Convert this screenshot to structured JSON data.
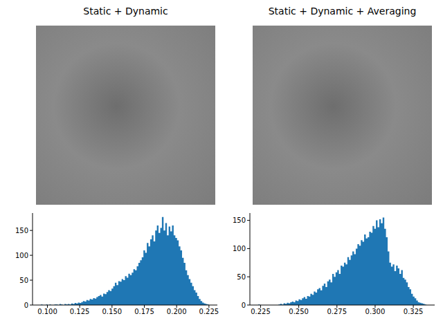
{
  "chart_data": [
    {
      "type": "image",
      "title": "Static + Dynamic"
    },
    {
      "type": "image",
      "title": "Static + Dynamic + Averaging"
    },
    {
      "type": "histogram",
      "color": "#1f77b4",
      "bins": [
        0.095,
        0.0963,
        0.0976,
        0.0989,
        0.1002,
        0.1015,
        0.1028,
        0.1041,
        0.1054,
        0.1067,
        0.108,
        0.1093,
        0.1106,
        0.1119,
        0.1132,
        0.1145,
        0.1158,
        0.1171,
        0.1184,
        0.1197,
        0.121,
        0.1223,
        0.1236,
        0.1249,
        0.1262,
        0.1275,
        0.1288,
        0.1301,
        0.1314,
        0.1327,
        0.134,
        0.1353,
        0.1366,
        0.1379,
        0.1392,
        0.1405,
        0.1418,
        0.1431,
        0.1444,
        0.1457,
        0.147,
        0.1483,
        0.1496,
        0.1509,
        0.1522,
        0.1535,
        0.1548,
        0.1561,
        0.1574,
        0.1587,
        0.16,
        0.1613,
        0.1626,
        0.1639,
        0.1652,
        0.1665,
        0.1678,
        0.1691,
        0.1704,
        0.1717,
        0.173,
        0.1743,
        0.1756,
        0.1769,
        0.1782,
        0.1795,
        0.1808,
        0.1821,
        0.1834,
        0.1847,
        0.186,
        0.1873,
        0.1886,
        0.1899,
        0.1912,
        0.1925,
        0.1938,
        0.1951,
        0.1964,
        0.1977,
        0.199,
        0.2003,
        0.2016,
        0.2029,
        0.2042,
        0.2055,
        0.2068,
        0.2081,
        0.2094,
        0.2107,
        0.212,
        0.2133,
        0.2146,
        0.2159,
        0.2172,
        0.2185,
        0.2198,
        0.2211,
        0.2224,
        0.2237,
        0.225
      ],
      "values": [
        1,
        0,
        0,
        1,
        0,
        1,
        0,
        0,
        1,
        1,
        0,
        2,
        1,
        0,
        2,
        1,
        2,
        1,
        3,
        2,
        4,
        3,
        5,
        4,
        6,
        8,
        7,
        10,
        9,
        12,
        11,
        14,
        13,
        16,
        18,
        20,
        17,
        23,
        22,
        26,
        30,
        28,
        33,
        38,
        45,
        40,
        48,
        47,
        52,
        50,
        58,
        55,
        63,
        60,
        65,
        72,
        70,
        78,
        85,
        90,
        96,
        110,
        105,
        125,
        118,
        132,
        140,
        128,
        150,
        160,
        145,
        155,
        177,
        150,
        165,
        140,
        158,
        148,
        160,
        140,
        135,
        130,
        118,
        110,
        95,
        85,
        70,
        60,
        52,
        45,
        38,
        30,
        25,
        18,
        12,
        8,
        5,
        3,
        2,
        1
      ],
      "xlim": [
        0.0885,
        0.2315
      ],
      "xticks": [
        {
          "value": 0.1,
          "label": "0.100"
        },
        0.125,
        {
          "value": 0.15,
          "label": "0.150"
        },
        0.175,
        {
          "value": 0.2,
          "label": "0.200"
        },
        0.225
      ],
      "ylim": [
        0,
        185
      ],
      "yticks": [
        0,
        50,
        100,
        150
      ]
    },
    {
      "type": "histogram",
      "color": "#1f77b4",
      "bins": [
        0.2235,
        0.2246,
        0.2257,
        0.2268,
        0.2279,
        0.229,
        0.2301,
        0.2312,
        0.2323,
        0.2334,
        0.2345,
        0.2356,
        0.2367,
        0.2378,
        0.2389,
        0.24,
        0.2411,
        0.2422,
        0.2433,
        0.2444,
        0.2455,
        0.2466,
        0.2477,
        0.2488,
        0.2499,
        0.251,
        0.2521,
        0.2532,
        0.2543,
        0.2554,
        0.2565,
        0.2576,
        0.2587,
        0.2598,
        0.2609,
        0.262,
        0.2631,
        0.2642,
        0.2653,
        0.2664,
        0.2675,
        0.2686,
        0.2697,
        0.2708,
        0.2719,
        0.273,
        0.2741,
        0.2752,
        0.2763,
        0.2774,
        0.2785,
        0.2796,
        0.2807,
        0.2818,
        0.2829,
        0.284,
        0.2851,
        0.2862,
        0.2873,
        0.2884,
        0.2895,
        0.2906,
        0.2917,
        0.2928,
        0.2939,
        0.295,
        0.2961,
        0.2972,
        0.2983,
        0.2994,
        0.3005,
        0.3016,
        0.3027,
        0.3038,
        0.3049,
        0.306,
        0.3071,
        0.3082,
        0.3093,
        0.3104,
        0.3115,
        0.3126,
        0.3137,
        0.3148,
        0.3159,
        0.317,
        0.3181,
        0.3192,
        0.3203,
        0.3214,
        0.3225,
        0.3236,
        0.3247,
        0.3258,
        0.3269,
        0.328,
        0.3291,
        0.3302,
        0.3313,
        0.3324,
        0.3335
      ],
      "values": [
        1,
        0,
        0,
        0,
        0,
        0,
        0,
        0,
        0,
        0,
        0,
        0,
        1,
        2,
        1,
        3,
        2,
        4,
        3,
        5,
        6,
        5,
        8,
        7,
        10,
        9,
        12,
        14,
        11,
        16,
        15,
        20,
        18,
        24,
        22,
        28,
        30,
        26,
        34,
        38,
        32,
        42,
        45,
        40,
        55,
        50,
        58,
        62,
        55,
        70,
        68,
        75,
        72,
        85,
        80,
        88,
        95,
        90,
        100,
        108,
        105,
        115,
        112,
        125,
        118,
        120,
        130,
        128,
        140,
        135,
        150,
        138,
        152,
        145,
        155,
        135,
        120,
        95,
        75,
        68,
        72,
        60,
        70,
        65,
        55,
        62,
        48,
        45,
        40,
        32,
        28,
        20,
        15,
        12,
        8,
        5,
        4,
        3,
        2,
        1
      ],
      "xlim": [
        0.218,
        0.339
      ],
      "xticks": [
        0.225,
        {
          "value": 0.25,
          "label": "0.250"
        },
        0.275,
        {
          "value": 0.3,
          "label": "0.300"
        },
        0.325
      ],
      "ylim": [
        0,
        163
      ],
      "yticks": [
        0,
        50,
        100,
        150
      ]
    }
  ]
}
